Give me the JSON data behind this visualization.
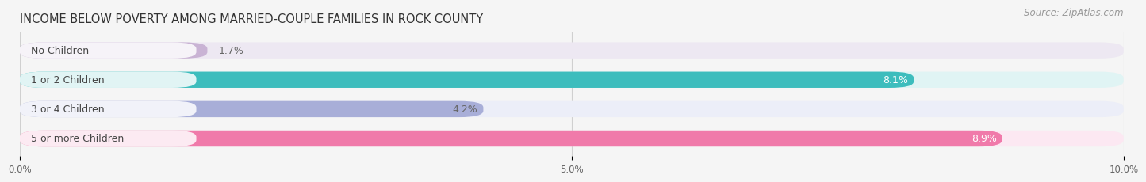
{
  "title": "INCOME BELOW POVERTY AMONG MARRIED-COUPLE FAMILIES IN ROCK COUNTY",
  "source": "Source: ZipAtlas.com",
  "categories": [
    "No Children",
    "1 or 2 Children",
    "3 or 4 Children",
    "5 or more Children"
  ],
  "values": [
    1.7,
    8.1,
    4.2,
    8.9
  ],
  "bar_colors": [
    "#c9b3d4",
    "#3dbdbd",
    "#a8aed8",
    "#f07aaa"
  ],
  "bar_bg_colors": [
    "#ede8f2",
    "#e0f4f4",
    "#eceef8",
    "#fce8f2"
  ],
  "value_label_colors": [
    "#666666",
    "#ffffff",
    "#666666",
    "#ffffff"
  ],
  "cat_label_color": "#444444",
  "xlim": [
    0,
    10.0
  ],
  "xticks": [
    0.0,
    5.0,
    10.0
  ],
  "xtick_labels": [
    "0.0%",
    "5.0%",
    "10.0%"
  ],
  "title_fontsize": 10.5,
  "source_fontsize": 8.5,
  "cat_label_fontsize": 9,
  "val_label_fontsize": 9,
  "bar_height": 0.55,
  "background_color": "#f5f5f5",
  "grid_color": "#d0d0d0"
}
